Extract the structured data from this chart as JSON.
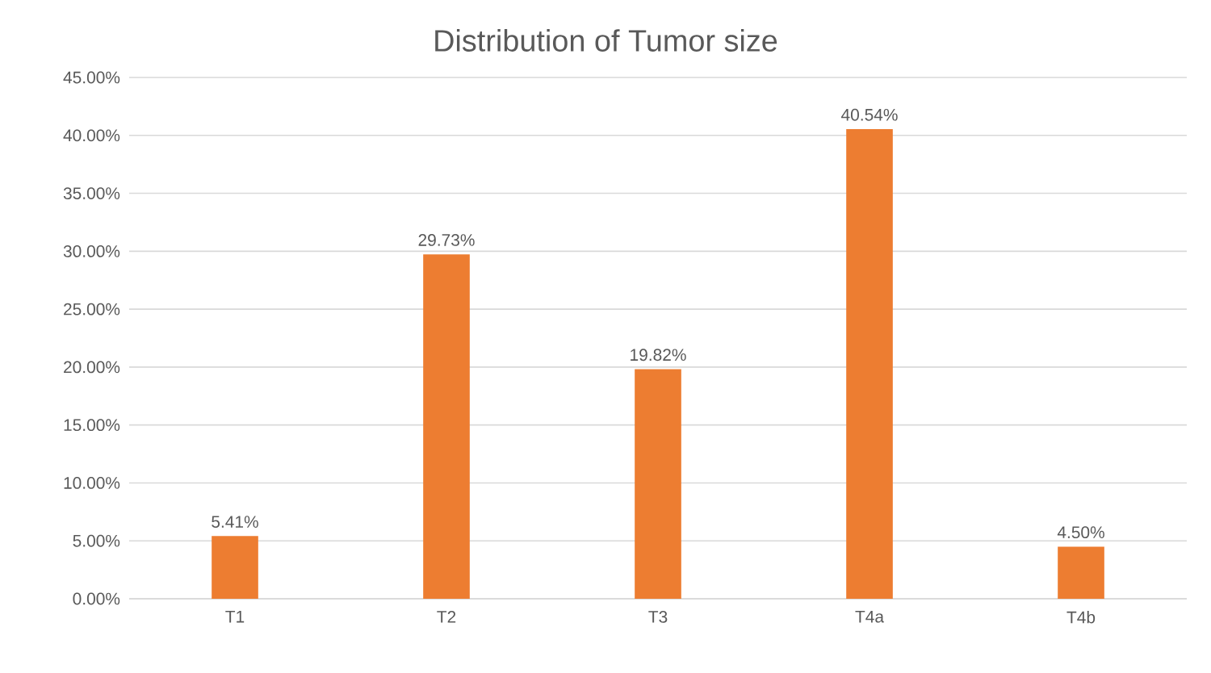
{
  "chart_data": {
    "type": "bar",
    "title": "Distribution of Tumor size",
    "categories": [
      "T1",
      "T2",
      "T3",
      "T4a",
      "T4b"
    ],
    "values": [
      5.41,
      29.73,
      19.82,
      40.54,
      4.5
    ],
    "value_labels": [
      "5.41%",
      "29.73%",
      "19.82%",
      "40.54%",
      "4.50%"
    ],
    "color": "#ed7d31",
    "ylim": [
      0,
      45
    ],
    "yticks": [
      {
        "value": 0,
        "label": "0.00%"
      },
      {
        "value": 5,
        "label": "5.00%"
      },
      {
        "value": 10,
        "label": "10.00%"
      },
      {
        "value": 15,
        "label": "15.00%"
      },
      {
        "value": 20,
        "label": "20.00%"
      },
      {
        "value": 25,
        "label": "25.00%"
      },
      {
        "value": 30,
        "label": "30.00%"
      },
      {
        "value": 35,
        "label": "35.00%"
      },
      {
        "value": 40,
        "label": "40.00%"
      },
      {
        "value": 45,
        "label": "45.00%"
      }
    ],
    "grid": "y"
  }
}
